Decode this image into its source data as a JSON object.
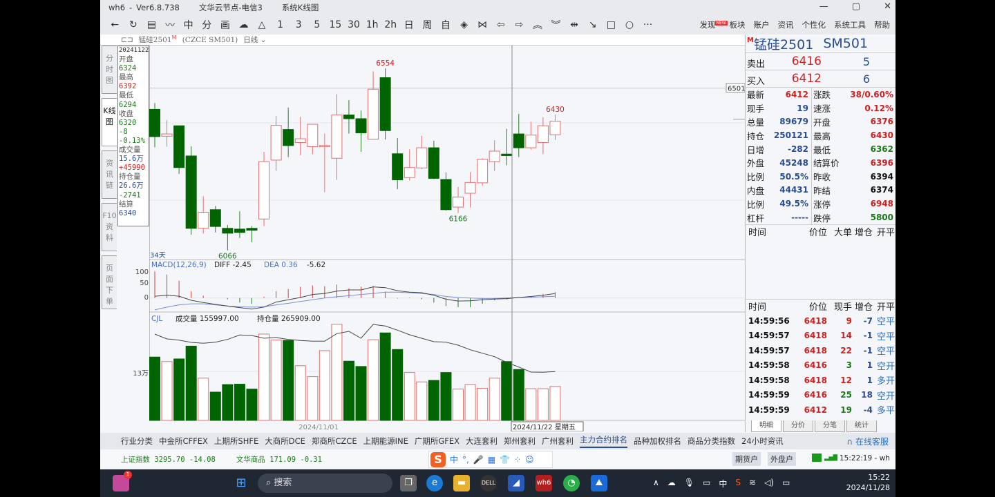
{
  "window": {
    "app": "wh6",
    "version": "Ver6.8.738",
    "node": "文华云节点-电信3",
    "view": "系统K线图",
    "controls": [
      "—",
      "▢",
      "✕"
    ]
  },
  "toolbar": {
    "items": [
      {
        "name": "back",
        "glyph": "←"
      },
      {
        "name": "refresh",
        "glyph": "↻"
      },
      {
        "name": "quote-list",
        "glyph": "▤"
      },
      {
        "name": "timeshare",
        "glyph": "〰"
      },
      {
        "name": "kline",
        "glyph": "中"
      },
      {
        "name": "tick",
        "glyph": "分"
      },
      {
        "name": "draw",
        "glyph": "画"
      },
      {
        "name": "cloud",
        "glyph": "☁"
      },
      {
        "name": "alert",
        "glyph": "△"
      },
      {
        "name": "period-1",
        "glyph": "1"
      },
      {
        "name": "period-3",
        "glyph": "3"
      },
      {
        "name": "period-5",
        "glyph": "5"
      },
      {
        "name": "period-15",
        "glyph": "15"
      },
      {
        "name": "period-30",
        "glyph": "30"
      },
      {
        "name": "period-1h",
        "glyph": "1h"
      },
      {
        "name": "period-2h",
        "glyph": "2h"
      },
      {
        "name": "period-day",
        "glyph": "日"
      },
      {
        "name": "period-week",
        "glyph": "周"
      },
      {
        "name": "period-custom",
        "glyph": "自"
      },
      {
        "name": "zoom-in",
        "glyph": "◈"
      },
      {
        "name": "zoom-out",
        "glyph": "⋈"
      },
      {
        "name": "move-left",
        "glyph": "⇦"
      },
      {
        "name": "move-right",
        "glyph": "⇨"
      },
      {
        "name": "up",
        "glyph": "︽"
      },
      {
        "name": "down",
        "glyph": "︾"
      },
      {
        "name": "split",
        "glyph": "⇹"
      },
      {
        "name": "line",
        "glyph": "↘"
      },
      {
        "name": "rect",
        "glyph": "□"
      },
      {
        "name": "ellipse",
        "glyph": "○"
      },
      {
        "name": "more",
        "glyph": "···"
      }
    ]
  },
  "menus": {
    "discover": "发现",
    "new_badge": "NEW",
    "items": [
      "板块",
      "账户",
      "资讯",
      "个性化",
      "系统工具",
      "帮助"
    ]
  },
  "symbol_bar": {
    "name": "锰硅2501",
    "flag": "M",
    "code": "(CZCE SM501)",
    "period": "日线"
  },
  "side_tabs": [
    "分时图",
    "K线图",
    "资讯链",
    "F10资料",
    "页面下单"
  ],
  "info": {
    "date": "20241122",
    "rows": [
      {
        "label": "开盘",
        "value": "6324",
        "color": "green"
      },
      {
        "label": "最高",
        "value": "6392",
        "color": "red"
      },
      {
        "label": "最低",
        "value": "6294",
        "color": "green"
      },
      {
        "label": "收盘",
        "value": "6320",
        "color": "green"
      },
      {
        "label": "",
        "value": "-8",
        "color": "green"
      },
      {
        "label": "",
        "value": "-0.13%",
        "color": "green"
      },
      {
        "label": "成交量",
        "value": "15.6万",
        "color": "blue"
      },
      {
        "label": "",
        "value": "+45990",
        "color": "red"
      },
      {
        "label": "持仓量",
        "value": "26.6万",
        "color": "blue"
      },
      {
        "label": "",
        "value": "-2741",
        "color": "green"
      },
      {
        "label": "结算",
        "value": "6340",
        "color": "blue"
      }
    ]
  },
  "chart_data": {
    "type": "candlestick",
    "days_label": "34天",
    "ohlc": [
      [
        6444,
        6461,
        6342,
        6371
      ],
      [
        6372,
        6415,
        6344,
        6378
      ],
      [
        6400,
        6400,
        6271,
        6288
      ],
      [
        6319,
        6345,
        6108,
        6125
      ],
      [
        6125,
        6211,
        6111,
        6168
      ],
      [
        6175,
        6185,
        6114,
        6130
      ],
      [
        6125,
        6134,
        6066,
        6112
      ],
      [
        6123,
        6171,
        6099,
        6114
      ],
      [
        6125,
        6131,
        6088,
        6120
      ],
      [
        6150,
        6330,
        6131,
        6304
      ],
      [
        6308,
        6426,
        6279,
        6401
      ],
      [
        6390,
        6449,
        6316,
        6347
      ],
      [
        6355,
        6424,
        6321,
        6365
      ],
      [
        6344,
        6404,
        6324,
        6404
      ],
      [
        6345,
        6379,
        6222,
        6347
      ],
      [
        6313,
        6485,
        6255,
        6429
      ],
      [
        6429,
        6469,
        6379,
        6419
      ],
      [
        6419,
        6441,
        6330,
        6381
      ],
      [
        6364,
        6546,
        6364,
        6498
      ],
      [
        6529,
        6554,
        6363,
        6387
      ],
      [
        6325,
        6367,
        6230,
        6255
      ],
      [
        6261,
        6337,
        6253,
        6288
      ],
      [
        6287,
        6373,
        6284,
        6341
      ],
      [
        6341,
        6360,
        6257,
        6259
      ],
      [
        6256,
        6275,
        6173,
        6175
      ],
      [
        6182,
        6236,
        6166,
        6209
      ],
      [
        6219,
        6276,
        6181,
        6248
      ],
      [
        6247,
        6313,
        6239,
        6310
      ],
      [
        6304,
        6361,
        6279,
        6332
      ],
      [
        6324,
        6392,
        6294,
        6320
      ],
      [
        6378,
        6432,
        6316,
        6341
      ],
      [
        6341,
        6411,
        6336,
        6375
      ],
      [
        6355,
        6423,
        6324,
        6400
      ],
      [
        6376,
        6430,
        6362,
        6412
      ]
    ],
    "annotations": {
      "high": {
        "index": 19,
        "text": "6554"
      },
      "low": {
        "index": 6,
        "text": "6066"
      },
      "low2": {
        "index": 25,
        "text": "6166"
      },
      "last_high": {
        "index": 33,
        "text": "6430"
      }
    },
    "price_line": {
      "value": 6501,
      "text": "6501"
    },
    "macd": {
      "title": "MACD(12,26,9)",
      "diff_label": "DIFF -2.45",
      "dea_label": "DEA 0.36",
      "hist_label": "-5.62",
      "yticks": [
        "100",
        "50",
        "0"
      ],
      "diff": [
        7,
        11,
        7,
        -9,
        -18,
        -25,
        -32,
        -38,
        -44,
        -36,
        -16,
        -7,
        2,
        14,
        18,
        27,
        32,
        32,
        44,
        41,
        29,
        23,
        21,
        11,
        -5,
        -12,
        -11,
        -7,
        -4,
        -2.45,
        2,
        6,
        11,
        18
      ],
      "dea": [
        -47,
        -36,
        -27,
        -23,
        -23,
        -27,
        -32,
        -35,
        -36,
        -35,
        -27,
        -21,
        -14,
        -7,
        0,
        5,
        9,
        14,
        18,
        23,
        23,
        21,
        18,
        14,
        6,
        2,
        0,
        -2,
        -2,
        0.36,
        2,
        3,
        5,
        7
      ],
      "hist": [
        105,
        93,
        68,
        27,
        9,
        0,
        -5,
        -18,
        -23,
        5,
        27,
        36,
        44,
        50,
        47,
        53,
        38,
        45,
        47,
        25,
        -2,
        2,
        -5,
        -18,
        -32,
        -36,
        -36,
        -23,
        -9,
        -5.62,
        2,
        5,
        16,
        23
      ]
    },
    "volume": {
      "title": "CJL",
      "vol_label": "成交量 155997.00",
      "oi_label": "持仓量 265909.00",
      "ytick": "13万",
      "values": [
        168000,
        156000,
        163000,
        197000,
        112000,
        75000,
        95000,
        96000,
        83000,
        229000,
        213000,
        212000,
        145000,
        116000,
        185000,
        255000,
        157000,
        143000,
        214000,
        232000,
        188000,
        127000,
        102000,
        106000,
        127000,
        83000,
        95000,
        85000,
        112000,
        155997,
        135000,
        84000,
        84000,
        90000
      ],
      "open_interest": [
        315100,
        306700,
        304700,
        300700,
        299100,
        301100,
        305900,
        313500,
        312700,
        307900,
        309100,
        305900,
        303900,
        302700,
        302700,
        315900,
        319900,
        307900,
        331900,
        329100,
        321900,
        313900,
        307900,
        301900,
        301100,
        295900,
        287900,
        281900,
        275900,
        265909,
        257900,
        249100,
        248700,
        250121
      ]
    },
    "xlabels": {
      "mid": "2024/11/01",
      "cursor": "2024/11/22 星期五"
    }
  },
  "quote": {
    "name": "锰硅2501",
    "code": "SM501",
    "flag": "M",
    "ask": {
      "label": "卖出",
      "price": "6416",
      "vol": "5"
    },
    "bid": {
      "label": "买入",
      "price": "6412",
      "vol": "6"
    },
    "rows": [
      [
        {
          "l": "最新",
          "v": "6412",
          "c": "red"
        },
        {
          "l": "涨跌",
          "v": "38/0.60%",
          "c": "red"
        }
      ],
      [
        {
          "l": "现手",
          "v": "19",
          "c": "blue"
        },
        {
          "l": "速涨",
          "v": "0.12%",
          "c": "red"
        }
      ],
      [
        {
          "l": "总量",
          "v": "89679",
          "c": "blue"
        },
        {
          "l": "开盘",
          "v": "6376",
          "c": "red"
        }
      ],
      [
        {
          "l": "持仓",
          "v": "250121",
          "c": "blue"
        },
        {
          "l": "最高",
          "v": "6430",
          "c": "red"
        }
      ],
      [
        {
          "l": "日增",
          "v": "-282",
          "c": "blue"
        },
        {
          "l": "最低",
          "v": "6362",
          "c": "green"
        }
      ],
      [
        {
          "l": "外盘",
          "v": "45248",
          "c": "blue"
        },
        {
          "l": "结算价",
          "v": "6396",
          "c": "red"
        }
      ],
      [
        {
          "l": "比例",
          "v": "50.5%",
          "c": "blue"
        },
        {
          "l": "昨收",
          "v": "6394",
          "c": "blk"
        }
      ],
      [
        {
          "l": "内盘",
          "v": "44431",
          "c": "blue"
        },
        {
          "l": "昨结",
          "v": "6374",
          "c": "blk"
        }
      ],
      [
        {
          "l": "比例",
          "v": "49.5%",
          "c": "blue"
        },
        {
          "l": "涨停",
          "v": "6948",
          "c": "red"
        }
      ],
      [
        {
          "l": "杠杆",
          "v": "-----",
          "c": "blue"
        },
        {
          "l": "跌停",
          "v": "5800",
          "c": "green"
        }
      ]
    ],
    "big_header": [
      "时间",
      "价位",
      "大单",
      "增仓",
      "开平"
    ],
    "tick_header": [
      "时间",
      "价位",
      "现手",
      "增仓",
      "开平"
    ],
    "ticks": [
      {
        "t": "14:59:56",
        "p": "6418",
        "v": "9",
        "vc": "red",
        "oi": "-7",
        "s": "空平"
      },
      {
        "t": "14:59:57",
        "p": "6418",
        "v": "14",
        "vc": "red",
        "oi": "-1",
        "s": "空平"
      },
      {
        "t": "14:59:57",
        "p": "6418",
        "v": "22",
        "vc": "red",
        "oi": "-1",
        "s": "空平"
      },
      {
        "t": "14:59:58",
        "p": "6416",
        "v": "3",
        "vc": "green",
        "oi": "1",
        "s": "空开"
      },
      {
        "t": "14:59:58",
        "p": "6418",
        "v": "12",
        "vc": "red",
        "oi": "1",
        "s": "多开"
      },
      {
        "t": "14:59:59",
        "p": "6416",
        "v": "25",
        "vc": "green",
        "oi": "18",
        "s": "空开"
      },
      {
        "t": "14:59:59",
        "p": "6412",
        "v": "19",
        "vc": "green",
        "oi": "-4",
        "s": "多平"
      }
    ],
    "tabs": [
      "明细",
      "分价",
      "分笔",
      "统计"
    ]
  },
  "bottom_tabs": {
    "items": [
      "行业分类",
      "中金所CFFEX",
      "上期所SHFE",
      "大商所DCE",
      "郑商所CZCE",
      "上期能源INE",
      "广期所GFEX",
      "大连套利",
      "郑州套利",
      "广州套利",
      "主力合约排名",
      "品种加权排名",
      "商品分类指数",
      "24小时资讯"
    ],
    "active": 10,
    "service": "在线客服"
  },
  "status": {
    "index1": "上证指数 3295.70 -14.08",
    "index2": "文华商品 171.09 -0.31",
    "futures_acct": "期货户",
    "foreign_acct": "外盘户",
    "clock": "15:22:19 - wh"
  },
  "ime": {
    "lang": "中",
    "items": [
      "°,",
      "🎤",
      "▦",
      "👕",
      "⁘",
      "☺"
    ]
  },
  "taskbar": {
    "search": "搜索",
    "time": "15:22",
    "date": "2024/11/28",
    "ime": "中",
    "badge": "1"
  },
  "colors": {
    "up": "#e04040",
    "down": "#006400",
    "accent": "#2a4d8f"
  }
}
